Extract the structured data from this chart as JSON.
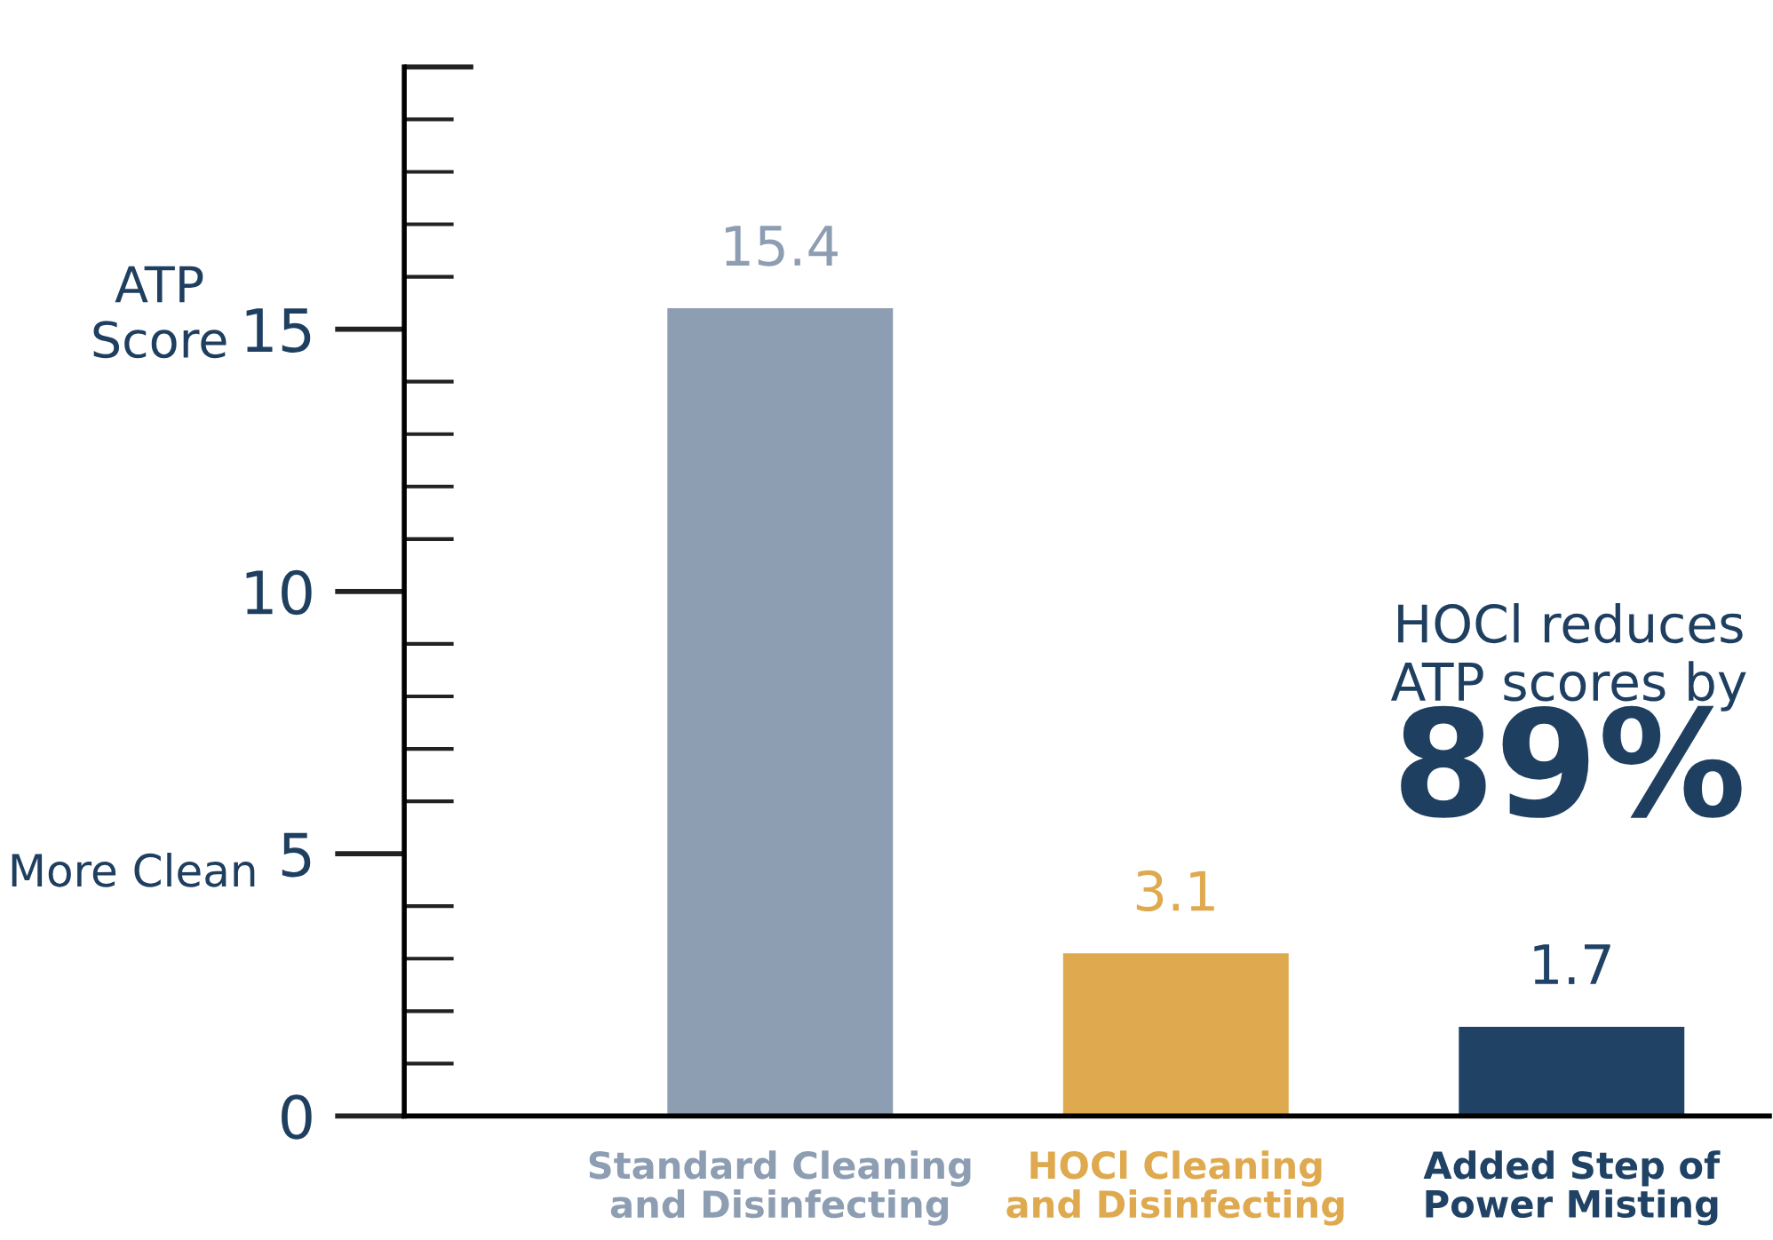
{
  "chart_data": {
    "type": "bar",
    "ylabel": "ATP\nScore",
    "categories": [
      "Standard Cleaning\nand Disinfecting",
      "HOCl Cleaning\nand Disinfecting",
      "Added Step of\nPower Misting"
    ],
    "values": [
      15.4,
      3.1,
      1.7
    ],
    "colors": [
      "#8d9db2",
      "#dfaa4f",
      "#1f4265"
    ],
    "data_labels": true,
    "ylim": [
      0,
      20
    ],
    "yticks": [
      0,
      5,
      10,
      15
    ],
    "grid": false,
    "annotations": [
      "More Clean",
      "HOCl reduces\nATP scores by",
      "89%"
    ]
  }
}
